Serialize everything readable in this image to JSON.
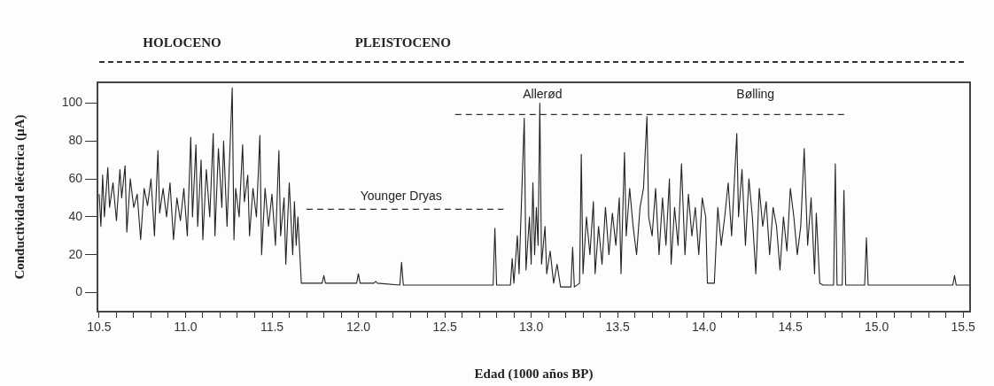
{
  "chart_data": {
    "type": "line",
    "xlabel": "Edad (1000 años BP)",
    "ylabel": "Conductividad eléctrica (µA)",
    "xlim": [
      10.49,
      15.54
    ],
    "ylim": [
      -10,
      111
    ],
    "xticks": [
      10.5,
      {
        "value": 10.6,
        "label": null
      },
      {
        "value": 10.7,
        "label": null
      },
      {
        "value": 10.8,
        "label": null
      },
      {
        "value": 10.9,
        "label": null
      },
      {
        "value": 11,
        "label": "11.0"
      },
      {
        "value": 11.1,
        "label": null
      },
      {
        "value": 11.2,
        "label": null
      },
      {
        "value": 11.3,
        "label": null
      },
      {
        "value": 11.4,
        "label": null
      },
      11.5,
      {
        "value": 11.6,
        "label": null
      },
      {
        "value": 11.7,
        "label": null
      },
      {
        "value": 11.8,
        "label": null
      },
      {
        "value": 11.9,
        "label": null
      },
      {
        "value": 12,
        "label": "12.0"
      },
      {
        "value": 12.1,
        "label": null
      },
      {
        "value": 12.2,
        "label": null
      },
      {
        "value": 12.3,
        "label": null
      },
      {
        "value": 12.4,
        "label": null
      },
      12.5,
      {
        "value": 12.6,
        "label": null
      },
      {
        "value": 12.7,
        "label": null
      },
      {
        "value": 12.8,
        "label": null
      },
      {
        "value": 12.9,
        "label": null
      },
      {
        "value": 13,
        "label": "13.0"
      },
      {
        "value": 13.1,
        "label": null
      },
      {
        "value": 13.2,
        "label": null
      },
      {
        "value": 13.3,
        "label": null
      },
      {
        "value": 13.4,
        "label": null
      },
      13.5,
      {
        "value": 13.6,
        "label": null
      },
      {
        "value": 13.7,
        "label": null
      },
      {
        "value": 13.8,
        "label": null
      },
      {
        "value": 13.9,
        "label": null
      },
      {
        "value": 14,
        "label": "14.0"
      },
      {
        "value": 14.1,
        "label": null
      },
      {
        "value": 14.2,
        "label": null
      },
      {
        "value": 14.3,
        "label": null
      },
      {
        "value": 14.4,
        "label": null
      },
      14.5,
      {
        "value": 14.6,
        "label": null
      },
      {
        "value": 14.7,
        "label": null
      },
      {
        "value": 14.8,
        "label": null
      },
      {
        "value": 14.9,
        "label": null
      },
      {
        "value": 15,
        "label": "15.0"
      },
      {
        "value": 15.1,
        "label": null
      },
      {
        "value": 15.2,
        "label": null
      },
      {
        "value": 15.3,
        "label": null
      },
      {
        "value": 15.4,
        "label": null
      },
      15.5
    ],
    "yticks": [
      0,
      20,
      40,
      60,
      80,
      100
    ],
    "grid": false,
    "legend": false,
    "marker": "none",
    "series": [
      {
        "color": "#222222",
        "line_style": "solid",
        "x": [
          10.5,
          10.51,
          10.52,
          10.53,
          10.55,
          10.56,
          10.58,
          10.6,
          10.62,
          10.63,
          10.65,
          10.66,
          10.68,
          10.7,
          10.72,
          10.74,
          10.76,
          10.78,
          10.8,
          10.82,
          10.84,
          10.85,
          10.87,
          10.89,
          10.91,
          10.93,
          10.95,
          10.97,
          10.99,
          11.01,
          11.03,
          11.04,
          11.06,
          11.07,
          11.09,
          11.1,
          11.12,
          11.14,
          11.16,
          11.17,
          11.19,
          11.21,
          11.22,
          11.24,
          11.27,
          11.28,
          11.29,
          11.31,
          11.33,
          11.34,
          11.36,
          11.37,
          11.39,
          11.41,
          11.43,
          11.44,
          11.46,
          11.48,
          11.5,
          11.52,
          11.54,
          11.55,
          11.57,
          11.58,
          11.6,
          11.62,
          11.63,
          11.64,
          11.65,
          11.67,
          11.79,
          11.8,
          11.81,
          11.99,
          12,
          12.01,
          12.09,
          12.1,
          12.11,
          12.24,
          12.25,
          12.26,
          12.78,
          12.79,
          12.8,
          12.88,
          12.89,
          12.9,
          12.92,
          12.93,
          12.96,
          12.97,
          12.99,
          13,
          13.01,
          13.02,
          13.03,
          13.04,
          13.05,
          13.06,
          13.08,
          13.09,
          13.11,
          13.13,
          13.15,
          13.17,
          13.23,
          13.24,
          13.25,
          13.28,
          13.29,
          13.3,
          13.32,
          13.34,
          13.36,
          13.37,
          13.39,
          13.41,
          13.43,
          13.45,
          13.47,
          13.49,
          13.51,
          13.52,
          13.54,
          13.55,
          13.57,
          13.59,
          13.61,
          13.63,
          13.65,
          13.67,
          13.68,
          13.7,
          13.72,
          13.74,
          13.76,
          13.78,
          13.8,
          13.81,
          13.83,
          13.85,
          13.87,
          13.89,
          13.91,
          13.93,
          13.95,
          13.97,
          13.99,
          14.01,
          14.02,
          14.06,
          14.08,
          14.1,
          14.12,
          14.14,
          14.16,
          14.19,
          14.2,
          14.22,
          14.24,
          14.26,
          14.28,
          14.3,
          14.32,
          14.34,
          14.36,
          14.38,
          14.4,
          14.42,
          14.44,
          14.46,
          14.48,
          14.5,
          14.52,
          14.54,
          14.56,
          14.58,
          14.6,
          14.62,
          14.64,
          14.65,
          14.67,
          14.69,
          14.75,
          14.76,
          14.77,
          14.8,
          14.81,
          14.82,
          14.93,
          14.94,
          14.95,
          15.44,
          15.45,
          15.46,
          15.54
        ],
        "values": [
          52,
          35,
          62,
          40,
          66,
          45,
          58,
          38,
          65,
          50,
          67,
          32,
          60,
          45,
          52,
          28,
          55,
          46,
          60,
          30,
          75,
          42,
          55,
          40,
          58,
          28,
          50,
          38,
          55,
          30,
          82,
          40,
          78,
          35,
          70,
          28,
          65,
          40,
          84,
          30,
          76,
          45,
          80,
          35,
          108,
          28,
          55,
          40,
          78,
          48,
          62,
          30,
          55,
          40,
          83,
          20,
          55,
          35,
          52,
          25,
          75,
          30,
          50,
          15,
          58,
          20,
          48,
          25,
          40,
          5,
          5,
          9,
          5,
          5,
          10,
          5,
          5,
          6,
          5,
          4,
          16,
          4,
          4,
          34,
          4,
          4,
          18,
          5,
          30,
          10,
          92,
          12,
          40,
          15,
          58,
          20,
          45,
          25,
          100,
          15,
          35,
          10,
          22,
          5,
          15,
          3,
          3,
          24,
          3,
          5,
          73,
          10,
          40,
          20,
          48,
          10,
          35,
          15,
          45,
          20,
          42,
          25,
          50,
          10,
          74,
          30,
          55,
          35,
          20,
          45,
          55,
          93,
          40,
          30,
          55,
          20,
          50,
          25,
          60,
          15,
          45,
          25,
          68,
          20,
          52,
          30,
          45,
          20,
          50,
          40,
          5,
          5,
          45,
          25,
          40,
          58,
          30,
          84,
          40,
          65,
          25,
          60,
          40,
          10,
          55,
          35,
          48,
          20,
          45,
          35,
          12,
          40,
          22,
          55,
          40,
          20,
          35,
          76,
          25,
          50,
          10,
          42,
          5,
          4,
          4,
          68,
          4,
          4,
          54,
          4,
          4,
          29,
          4,
          4,
          9,
          4,
          4
        ]
      },
      {
        "color": "#333333",
        "line_style": "dashed",
        "x": [
          11.7,
          12.84
        ],
        "values": [
          44,
          44
        ]
      },
      {
        "color": "#333333",
        "line_style": "dashed",
        "x": [
          12.56,
          14.82
        ],
        "values": [
          94,
          94
        ]
      }
    ],
    "annotations": [
      "HOLOCENO",
      "PLEISTOCENO",
      "Younger Dryas",
      "Allerød",
      "Bølling"
    ]
  }
}
